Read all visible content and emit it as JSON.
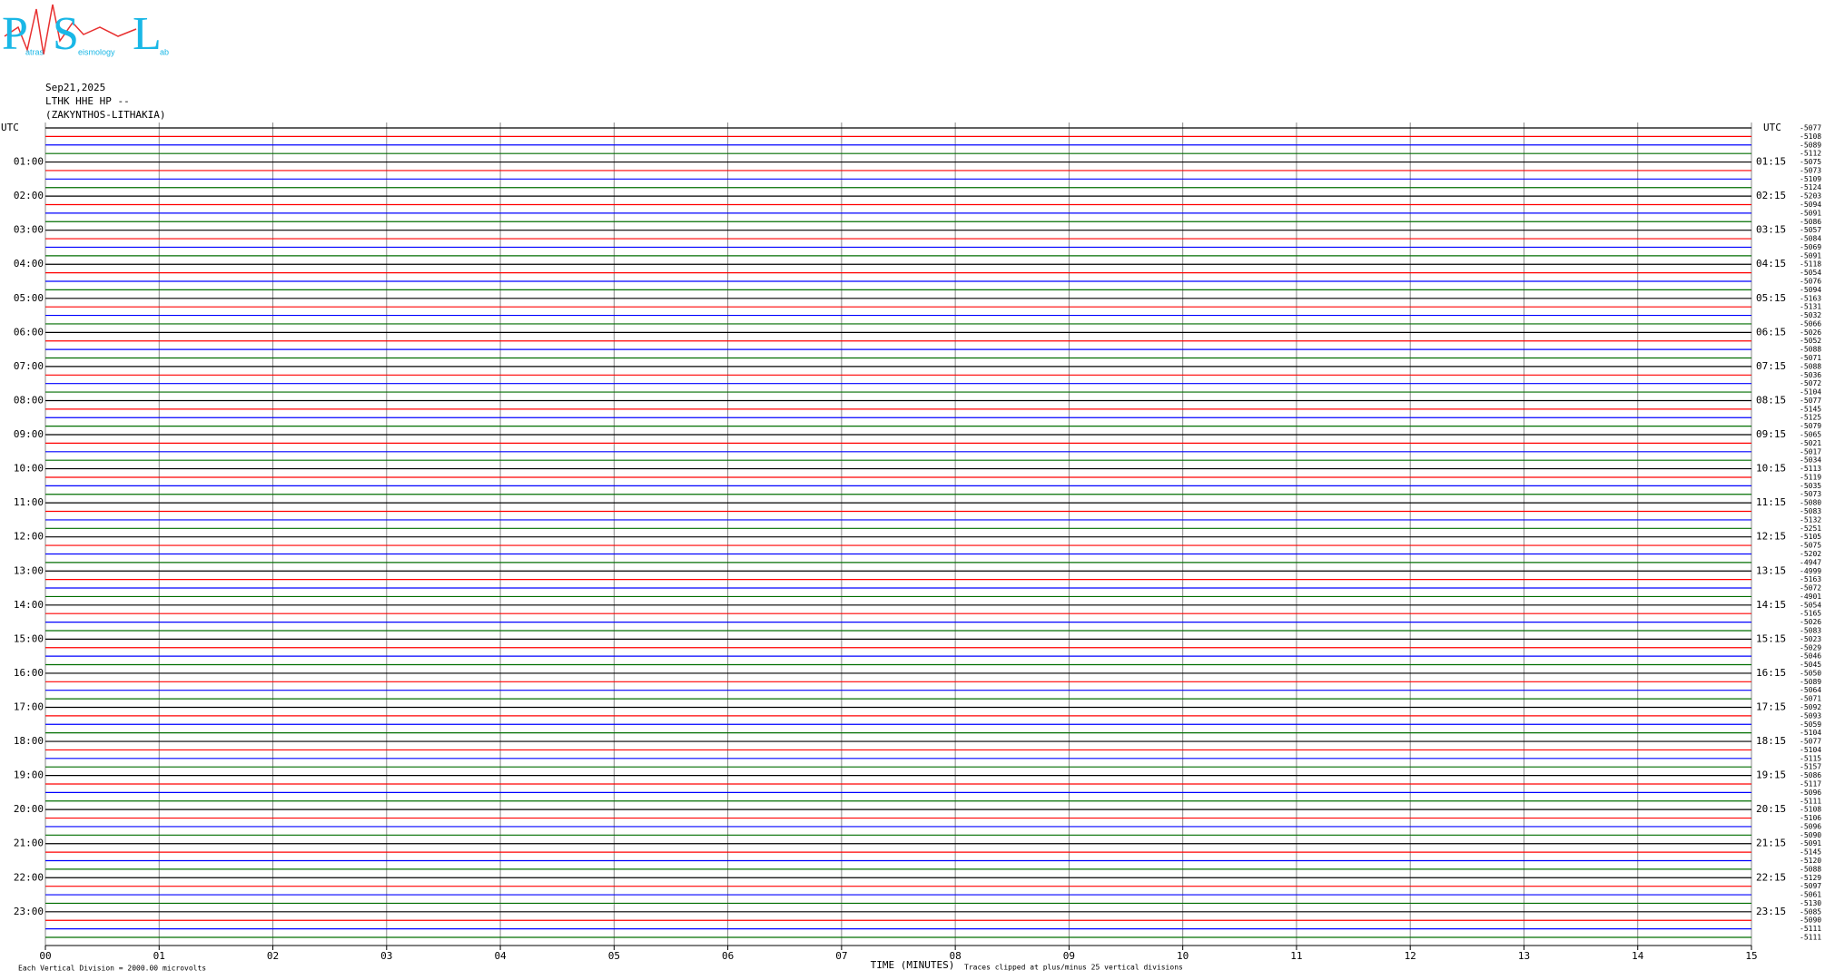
{
  "logo": {
    "letters": [
      "P",
      "S",
      "L"
    ],
    "words": [
      "atras",
      "eismology",
      "ab"
    ]
  },
  "chart_data": {
    "type": "helicorder",
    "date": "Sep21,2025",
    "station": "LTHK HHE HP --",
    "location": "(ZAKYNTHOS-LITHAKIA)",
    "left_axis_label": "UTC",
    "right_axis_label": "UTC",
    "left_hour_labels": [
      "01:00",
      "02:00",
      "03:00",
      "04:00",
      "05:00",
      "06:00",
      "07:00",
      "08:00",
      "09:00",
      "10:00",
      "11:00",
      "12:00",
      "13:00",
      "14:00",
      "15:00",
      "16:00",
      "17:00",
      "18:00",
      "19:00",
      "20:00",
      "21:00",
      "22:00",
      "23:00"
    ],
    "right_hour_labels": [
      "01:15",
      "02:15",
      "03:15",
      "04:15",
      "05:15",
      "06:15",
      "07:15",
      "08:15",
      "09:15",
      "10:15",
      "11:15",
      "12:15",
      "13:15",
      "14:15",
      "15:15",
      "16:15",
      "17:15",
      "18:15",
      "19:15",
      "20:15",
      "21:15",
      "22:15",
      "23:15"
    ],
    "trace_colors": [
      "#000000",
      "#ff0000",
      "#0000ff",
      "#006e00"
    ],
    "trace_offsets": [
      -5077,
      -5108,
      -5089,
      -5112,
      -5075,
      -5073,
      -5109,
      -5124,
      -5203,
      -5094,
      -5091,
      -5086,
      -5057,
      -5084,
      -5069,
      -5091,
      -5118,
      -5054,
      -5076,
      -5094,
      -5163,
      -5131,
      -5032,
      -5066,
      -5026,
      -5052,
      -5088,
      -5071,
      -5088,
      -5036,
      -5072,
      -5104,
      -5077,
      -5145,
      -5125,
      -5079,
      -5065,
      -5021,
      -5017,
      -5034,
      -5113,
      -5119,
      -5035,
      -5073,
      -5080,
      -5083,
      -5132,
      -5251,
      -5105,
      -5075,
      -5202,
      -4947,
      -4999,
      -5163,
      -5072,
      -4901,
      -5054,
      -5165,
      -5026,
      -5083,
      -5023,
      -5029,
      -5046,
      -5045,
      -5050,
      -5089,
      -5064,
      -5071,
      -5092,
      -5093,
      -5059,
      -5104,
      -5077,
      -5104,
      -5115,
      -5157,
      -5086,
      -5117,
      -5096,
      -5111,
      -5108,
      -5106,
      -5096,
      -5090,
      -5091,
      -5145,
      -5120,
      -5088,
      -5129,
      -5097,
      -5061,
      -5130,
      -5085,
      -5090,
      -5111,
      -5111
    ],
    "xlabel": "TIME (MINUTES)",
    "xlim": [
      0,
      15
    ],
    "xticks": [
      {
        "value": 0,
        "label": "00"
      },
      {
        "value": 1,
        "label": "01"
      },
      {
        "value": 2,
        "label": "02"
      },
      {
        "value": 3,
        "label": "03"
      },
      {
        "value": 4,
        "label": "04"
      },
      {
        "value": 5,
        "label": "05"
      },
      {
        "value": 6,
        "label": "06"
      },
      {
        "value": 7,
        "label": "07"
      },
      {
        "value": 8,
        "label": "08"
      },
      {
        "value": 9,
        "label": "09"
      },
      10,
      11,
      12,
      13,
      14,
      15
    ],
    "grid": true,
    "scale_note": "Each Vertical Division = 2000.00 microvolts",
    "clip_note": "Traces clipped at plus/minus 25 vertical divisions"
  }
}
